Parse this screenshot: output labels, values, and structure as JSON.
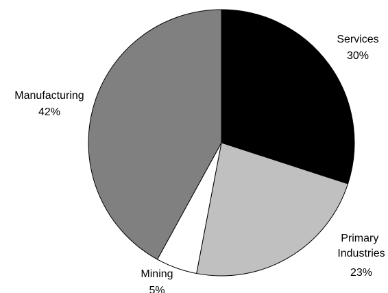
{
  "chart_data": {
    "type": "pie",
    "slices": [
      {
        "name": "Services",
        "value": 30,
        "value_label": "30%",
        "color": "#000000"
      },
      {
        "name": "Primary Industries",
        "value": 23,
        "value_label": "23%",
        "color": "#c0c0c0"
      },
      {
        "name": "Mining",
        "value": 5,
        "value_label": "5%",
        "color": "#ffffff"
      },
      {
        "name": "Manufacturing",
        "value": 42,
        "value_label": "42%",
        "color": "#808080"
      }
    ],
    "start": "12 o'clock",
    "direction": "clockwise",
    "legend": "none"
  }
}
